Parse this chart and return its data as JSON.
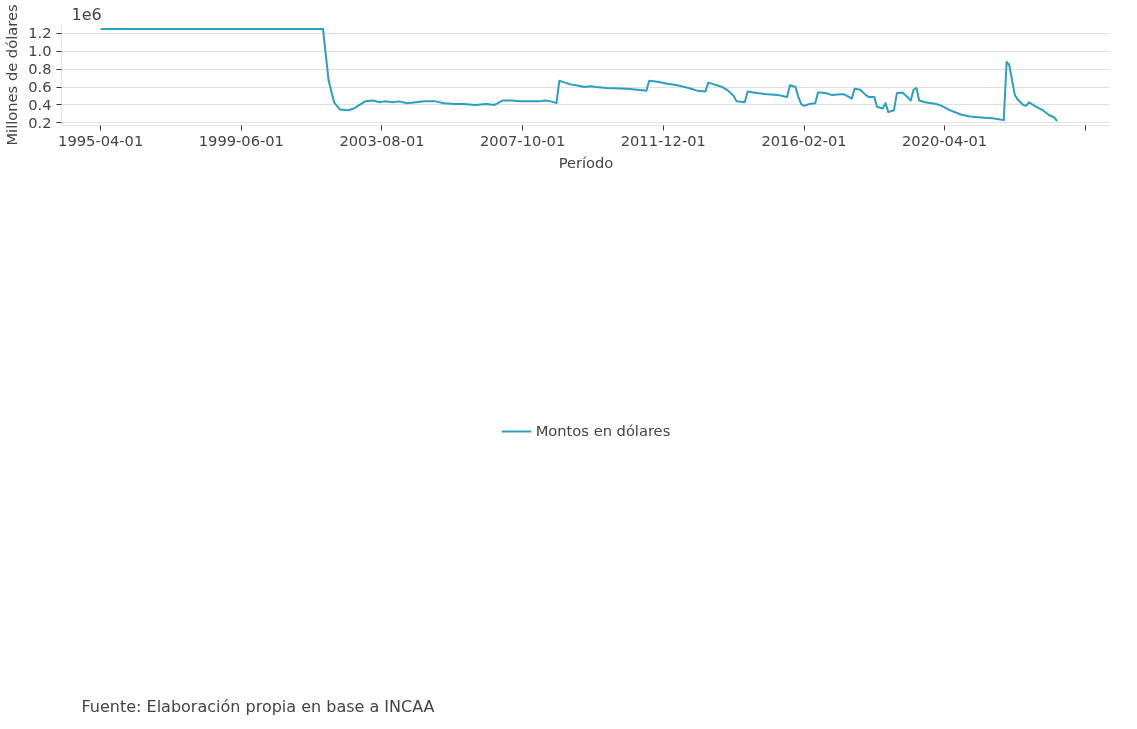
{
  "chart_data": {
    "type": "line",
    "xlabel": "Período",
    "ylabel": "Millones de dólares",
    "annotations": [
      "1e6",
      "Fuente: Elaboración propia en base a INCAA"
    ],
    "x": [
      "1995-04",
      "2001-11",
      "2001-12",
      "2002-01",
      "2002-03",
      "2002-05",
      "2002-08",
      "2002-10",
      "2002-12",
      "2003-02",
      "2003-05",
      "2003-07",
      "2003-09",
      "2003-12",
      "2004-02",
      "2004-05",
      "2004-08",
      "2004-11",
      "2005-03",
      "2005-06",
      "2005-10",
      "2006-01",
      "2006-05",
      "2006-09",
      "2006-12",
      "2007-03",
      "2007-06",
      "2007-09",
      "2008-01",
      "2008-04",
      "2008-06",
      "2008-08",
      "2008-10",
      "2008-11",
      "2009-01",
      "2009-03",
      "2009-05",
      "2009-08",
      "2009-10",
      "2009-12",
      "2010-04",
      "2010-11",
      "2011-03",
      "2011-06",
      "2011-07",
      "2011-10",
      "2012-01",
      "2012-05",
      "2012-09",
      "2012-12",
      "2013-03",
      "2013-04",
      "2013-06",
      "2013-09",
      "2013-11",
      "2014-01",
      "2014-02",
      "2014-05",
      "2014-06",
      "2014-08",
      "2014-10",
      "2015-01",
      "2015-05",
      "2015-08",
      "2015-09",
      "2015-11",
      "2015-12",
      "2016-01",
      "2016-02",
      "2016-04",
      "2016-06",
      "2016-07",
      "2016-08",
      "2016-10",
      "2016-12",
      "2017-03",
      "2017-04",
      "2017-06",
      "2017-07",
      "2017-08",
      "2017-10",
      "2017-12",
      "2018-01",
      "2018-03",
      "2018-04",
      "2018-06",
      "2018-07",
      "2018-08",
      "2018-10",
      "2018-11",
      "2019-01",
      "2019-02",
      "2019-04",
      "2019-05",
      "2019-06",
      "2019-07",
      "2019-09",
      "2020-01",
      "2020-03",
      "2020-06",
      "2020-10",
      "2021-01",
      "2021-05",
      "2021-09",
      "2022-01",
      "2022-02",
      "2022-03",
      "2022-05",
      "2022-06",
      "2022-08",
      "2022-09",
      "2022-10",
      "2022-12",
      "2023-03",
      "2023-05",
      "2023-07",
      "2023-08"
    ],
    "series": [
      {
        "name": "Montos en dólares",
        "color": "#2a9fc0",
        "values": [
          1.25,
          1.25,
          0.96,
          0.67,
          0.43,
          0.35,
          0.34,
          0.36,
          0.4,
          0.44,
          0.45,
          0.43,
          0.44,
          0.43,
          0.44,
          0.42,
          0.43,
          0.44,
          0.44,
          0.42,
          0.41,
          0.41,
          0.4,
          0.41,
          0.4,
          0.45,
          0.45,
          0.44,
          0.44,
          0.44,
          0.45,
          0.44,
          0.42,
          0.67,
          0.65,
          0.63,
          0.62,
          0.6,
          0.61,
          0.6,
          0.59,
          0.58,
          0.57,
          0.56,
          0.67,
          0.66,
          0.64,
          0.62,
          0.59,
          0.56,
          0.55,
          0.65,
          0.63,
          0.6,
          0.56,
          0.5,
          0.44,
          0.43,
          0.55,
          0.54,
          0.53,
          0.52,
          0.51,
          0.49,
          0.62,
          0.6,
          0.49,
          0.41,
          0.39,
          0.41,
          0.42,
          0.54,
          0.54,
          0.53,
          0.51,
          0.52,
          0.52,
          0.49,
          0.47,
          0.58,
          0.57,
          0.51,
          0.49,
          0.49,
          0.38,
          0.36,
          0.42,
          0.32,
          0.34,
          0.53,
          0.54,
          0.51,
          0.45,
          0.57,
          0.59,
          0.45,
          0.43,
          0.41,
          0.39,
          0.34,
          0.29,
          0.27,
          0.26,
          0.25,
          0.23,
          0.88,
          0.85,
          0.51,
          0.46,
          0.4,
          0.39,
          0.43,
          0.39,
          0.34,
          0.29,
          0.26,
          0.22
        ]
      }
    ],
    "xlim": [
      "1994-02",
      "2025-03"
    ],
    "xticks": [
      {
        "value": "1995-04-01",
        "label": "1995-04-01"
      },
      {
        "value": "1999-06-01",
        "label": "1999-06-01"
      },
      {
        "value": "2003-08-01",
        "label": "2003-08-01"
      },
      {
        "value": "2007-10-01",
        "label": "2007-10-01"
      },
      {
        "value": "2011-12-01",
        "label": "2011-12-01"
      },
      {
        "value": "2016-02-01",
        "label": "2016-02-01"
      },
      {
        "value": "2020-04-01",
        "label": "2020-04-01"
      },
      {
        "value": "2024-06-01",
        "label": null
      }
    ],
    "ylim": [
      0.17,
      1.3
    ],
    "yticks": [
      {
        "value": 0.2,
        "label": "0.2"
      },
      {
        "value": 0.4,
        "label": "0.4"
      },
      {
        "value": 0.6,
        "label": "0.6"
      },
      {
        "value": 0.8,
        "label": "0.8"
      },
      {
        "value": 1.0,
        "label": "1.0"
      },
      {
        "value": 1.2,
        "label": "1.2"
      }
    ],
    "grid": "y",
    "legend": "bottom",
    "marker": "none",
    "line_style": "solid"
  }
}
